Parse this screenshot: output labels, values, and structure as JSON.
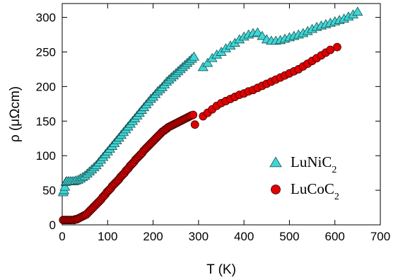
{
  "chart_data": {
    "type": "scatter",
    "xlabel": "T (K)",
    "ylabel": "ρ (μΩcm)",
    "xlim": [
      0,
      700
    ],
    "ylim": [
      0,
      320
    ],
    "xticks": [
      0,
      100,
      200,
      300,
      400,
      500,
      600,
      700
    ],
    "yticks": [
      0,
      50,
      100,
      150,
      200,
      250,
      300
    ],
    "grid": false,
    "legend_position": "bottom-right",
    "series": [
      {
        "name": "LuNiC",
        "name_subscript": "2",
        "marker": "triangle",
        "color": "#3fd6d6",
        "x": [
          2,
          4,
          6,
          8,
          10,
          14,
          18,
          22,
          26,
          30,
          35,
          40,
          45,
          50,
          55,
          60,
          65,
          70,
          75,
          80,
          85,
          90,
          95,
          100,
          105,
          110,
          115,
          120,
          125,
          130,
          135,
          140,
          145,
          150,
          155,
          160,
          165,
          170,
          175,
          180,
          185,
          190,
          195,
          200,
          205,
          210,
          215,
          220,
          225,
          230,
          235,
          240,
          245,
          250,
          255,
          260,
          265,
          270,
          275,
          280,
          285,
          290,
          310,
          320,
          330,
          340,
          350,
          360,
          370,
          380,
          390,
          400,
          410,
          420,
          430,
          440,
          450,
          460,
          470,
          480,
          490,
          500,
          510,
          520,
          530,
          540,
          550,
          560,
          570,
          580,
          590,
          600,
          610,
          620,
          630,
          640,
          650
        ],
        "y": [
          47,
          50,
          55,
          62,
          63,
          63,
          63,
          63,
          63,
          64,
          65,
          67,
          69,
          71,
          74,
          77,
          80,
          83,
          86,
          90,
          94,
          98,
          102,
          106,
          110,
          114,
          118,
          122,
          126,
          130,
          134,
          138,
          142,
          146,
          150,
          154,
          158,
          162,
          166,
          170,
          174,
          178,
          182,
          185,
          189,
          193,
          196,
          199,
          203,
          207,
          210,
          213,
          216,
          219,
          222,
          225,
          228,
          231,
          234,
          237,
          240,
          243,
          228,
          234,
          241,
          246,
          250,
          255,
          259,
          263,
          268,
          272,
          275,
          277,
          278,
          273,
          268,
          266,
          266,
          267,
          269,
          271,
          273,
          275,
          277,
          280,
          283,
          286,
          288,
          290,
          292,
          294,
          296,
          298,
          301,
          304,
          308
        ]
      },
      {
        "name": "LuCoC",
        "name_subscript": "2",
        "marker": "circle",
        "color": "#e00000",
        "x": [
          2,
          5,
          8,
          11,
          14,
          17,
          20,
          23,
          26,
          29,
          32,
          35,
          38,
          41,
          44,
          47,
          50,
          53,
          56,
          59,
          62,
          65,
          68,
          71,
          74,
          77,
          80,
          83,
          86,
          89,
          92,
          95,
          98,
          101,
          104,
          107,
          110,
          113,
          116,
          119,
          122,
          125,
          128,
          131,
          134,
          137,
          140,
          143,
          146,
          149,
          152,
          155,
          158,
          161,
          164,
          167,
          170,
          173,
          176,
          179,
          182,
          185,
          188,
          191,
          194,
          197,
          200,
          203,
          206,
          209,
          212,
          215,
          218,
          221,
          224,
          227,
          230,
          233,
          236,
          239,
          242,
          245,
          248,
          251,
          254,
          257,
          260,
          263,
          266,
          269,
          272,
          275,
          278,
          281,
          284,
          288,
          292,
          310,
          320,
          330,
          340,
          350,
          360,
          370,
          380,
          390,
          400,
          410,
          420,
          430,
          440,
          450,
          460,
          470,
          480,
          490,
          500,
          510,
          520,
          530,
          540,
          550,
          560,
          570,
          580,
          590,
          605
        ],
        "y": [
          7,
          7,
          7,
          7,
          7,
          7,
          7,
          7,
          7,
          8,
          8,
          9,
          10,
          11,
          12,
          13,
          14,
          15,
          17,
          19,
          21,
          23,
          25,
          27,
          29,
          31,
          33,
          35,
          37,
          40,
          42,
          44,
          47,
          49,
          51,
          53,
          56,
          58,
          60,
          62,
          64,
          66,
          69,
          71,
          73,
          75,
          78,
          80,
          82,
          85,
          87,
          89,
          91,
          94,
          96,
          98,
          100,
          102,
          104,
          107,
          109,
          111,
          113,
          115,
          117,
          119,
          121,
          123,
          125,
          127,
          129,
          131,
          133,
          135,
          136,
          138,
          139,
          141,
          142,
          143,
          144,
          145,
          146,
          147,
          148,
          149,
          150,
          151,
          152,
          153,
          154,
          155,
          156,
          157,
          158,
          159,
          145,
          157,
          162,
          167,
          172,
          176,
          179,
          182,
          185,
          188,
          190,
          193,
          195,
          198,
          201,
          204,
          207,
          210,
          213,
          216,
          219,
          222,
          225,
          229,
          233,
          237,
          241,
          245,
          249,
          253,
          257
        ]
      }
    ]
  }
}
